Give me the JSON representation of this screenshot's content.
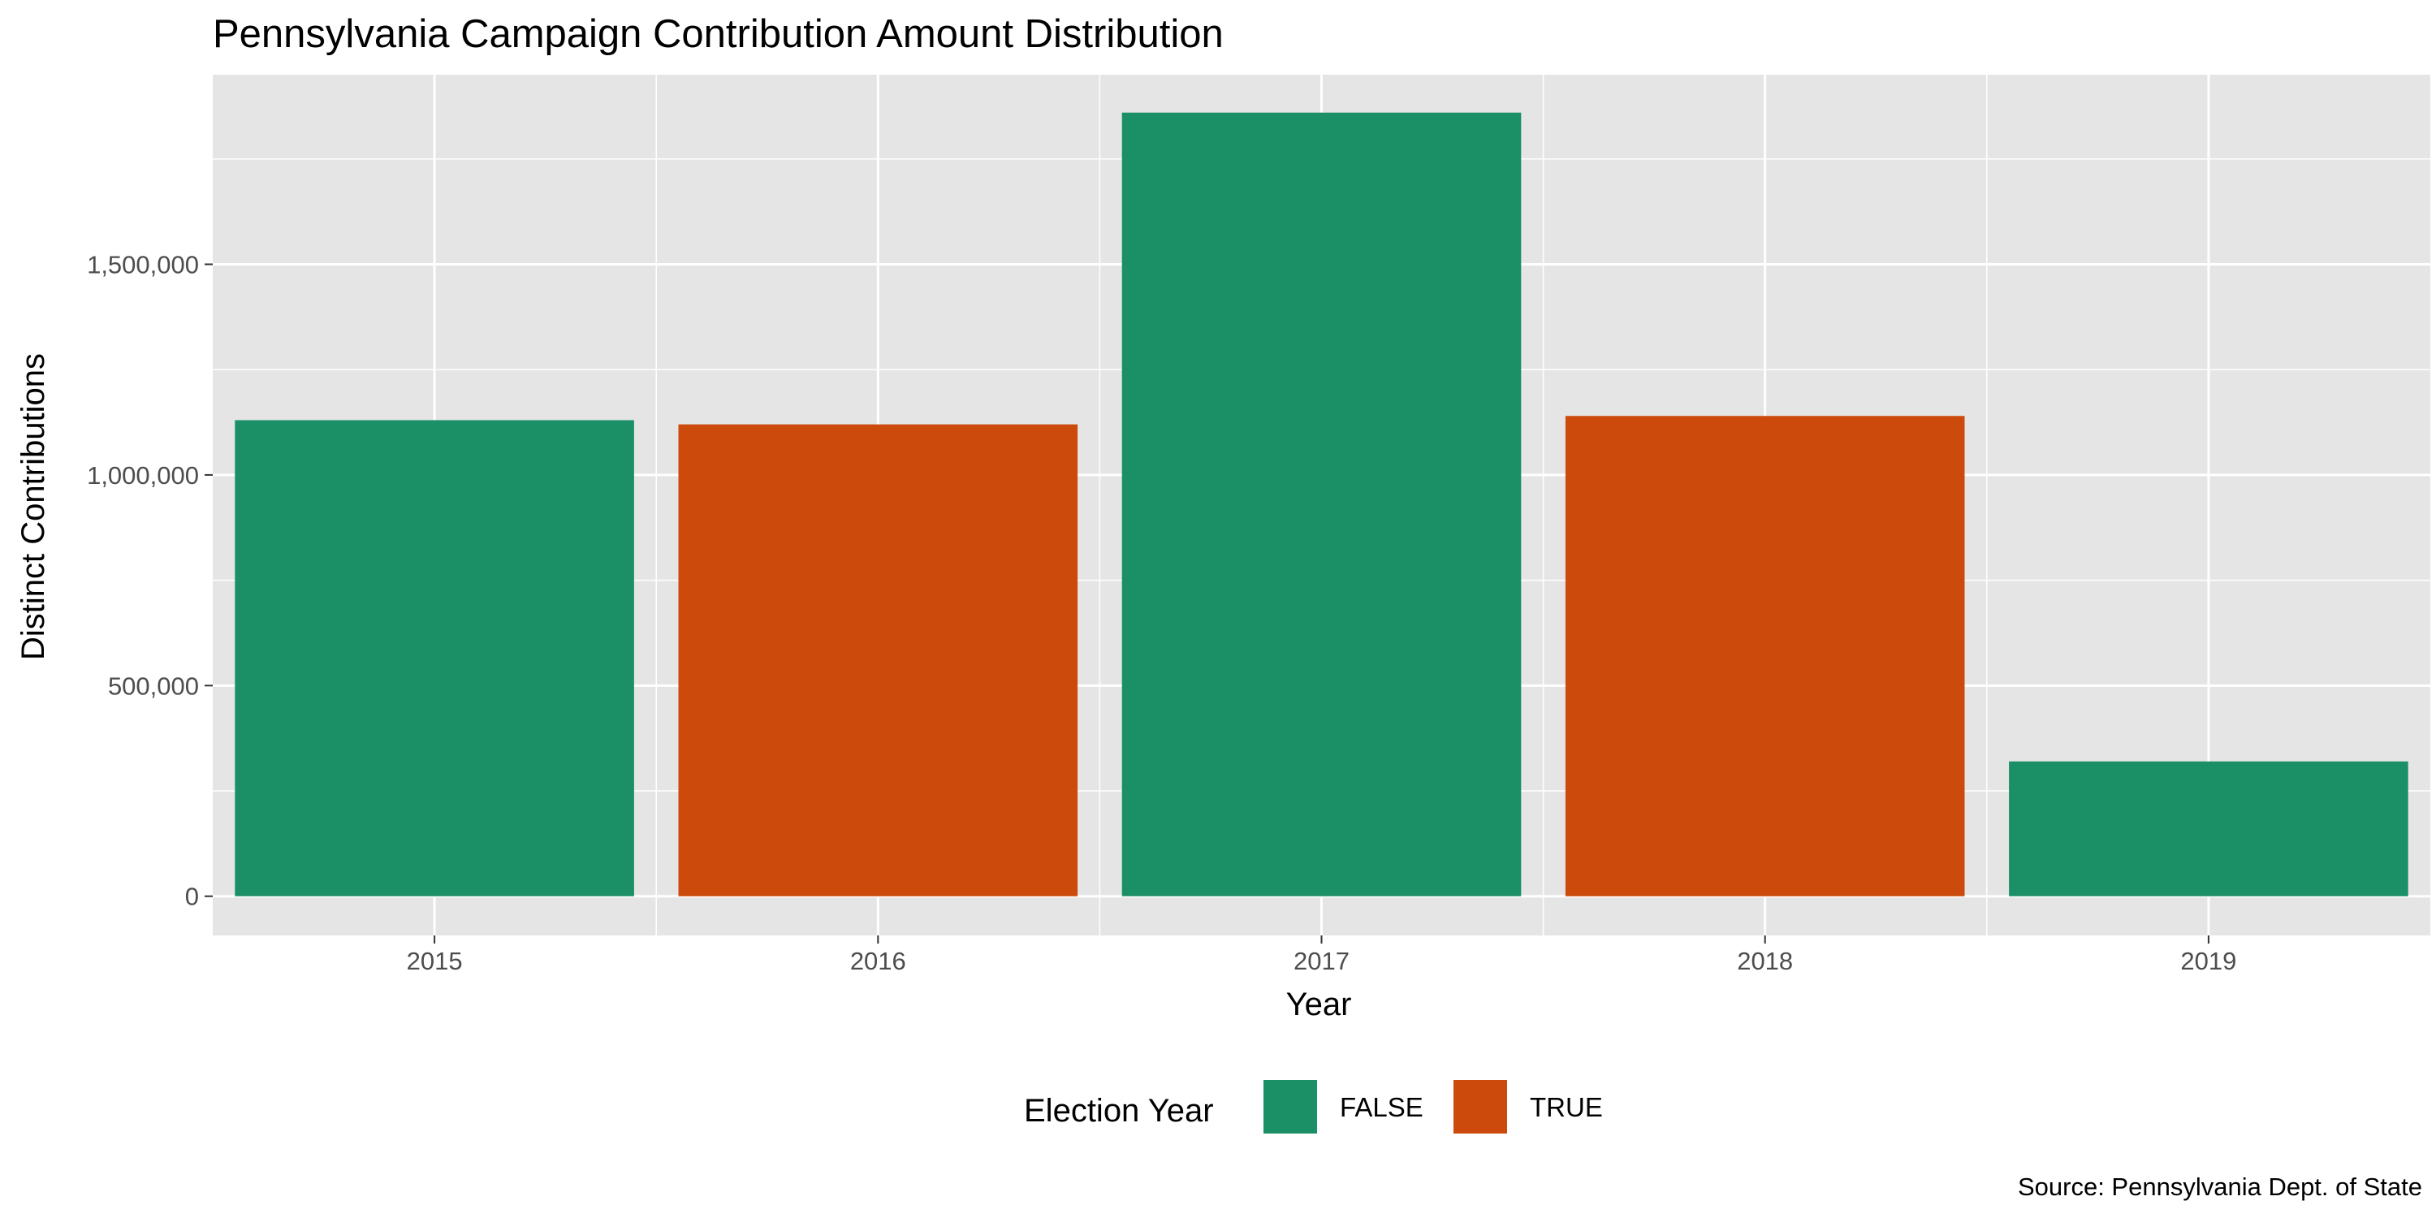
{
  "chart_data": {
    "type": "bar",
    "title": "Pennsylvania Campaign Contribution Amount Distribution",
    "xlabel": "Year",
    "ylabel": "Distinct Contributions",
    "categories": [
      "2015",
      "2016",
      "2017",
      "2018",
      "2019"
    ],
    "values": [
      1130000,
      1120000,
      1860000,
      1140000,
      320000
    ],
    "election_year": [
      "FALSE",
      "TRUE",
      "FALSE",
      "TRUE",
      "FALSE"
    ],
    "y_ticks": [
      0,
      500000,
      1000000,
      1500000
    ],
    "y_tick_labels": [
      "0",
      "500,000",
      "1,000,000",
      "1,500,000"
    ],
    "ylim": [
      -93000,
      1950000
    ],
    "grid": true,
    "legend": {
      "title": "Election Year",
      "position": "bottom",
      "entries": [
        {
          "label": "FALSE",
          "color": "#1b9067"
        },
        {
          "label": "TRUE",
          "color": "#cc4a0b"
        }
      ]
    },
    "caption": "Source: Pennsylvania Dept. of State",
    "colors": {
      "panel_background": "#e5e5e5",
      "grid": "#ffffff",
      "false": "#1b9067",
      "true": "#cc4a0b"
    }
  }
}
